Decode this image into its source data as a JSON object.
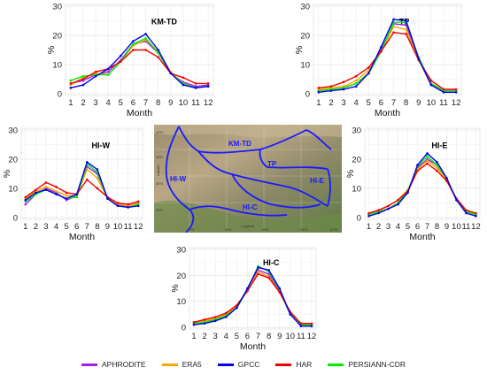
{
  "chart_data": [
    {
      "type": "line",
      "region": "KM-TD",
      "title": "KM-TD",
      "xlabel": "Month",
      "ylabel": "%",
      "ylim": [
        0,
        30
      ],
      "yticks": [
        0,
        10,
        20,
        30
      ],
      "categories": [
        "1",
        "2",
        "3",
        "4",
        "5",
        "6",
        "7",
        "8",
        "9",
        "10",
        "11",
        "12"
      ],
      "series": [
        {
          "name": "APHRODITE",
          "values": [
            3.5,
            4.5,
            6.5,
            7.5,
            11.5,
            17,
            18,
            14,
            7,
            4,
            2.5,
            3
          ]
        },
        {
          "name": "ERA5",
          "values": [
            3,
            5.5,
            7,
            6.5,
            11,
            16.5,
            18.5,
            14.5,
            7.5,
            3.5,
            2,
            2.5
          ]
        },
        {
          "name": "GPCC",
          "values": [
            2,
            3,
            6,
            8.5,
            13,
            18,
            20.5,
            15,
            7,
            3,
            2,
            2.5
          ]
        },
        {
          "name": "HAR",
          "values": [
            3.5,
            5,
            7.5,
            8.5,
            11,
            15,
            15,
            12.5,
            7,
            5.5,
            3.5,
            3.5
          ]
        },
        {
          "name": "PERSIANN-CDR",
          "values": [
            4.5,
            6,
            6.5,
            6.5,
            11,
            17,
            19,
            14,
            7,
            3.5,
            2,
            2.5
          ]
        }
      ]
    },
    {
      "type": "line",
      "region": "TP",
      "title": "TP",
      "xlabel": "Month",
      "ylabel": "%",
      "ylim": [
        0,
        30
      ],
      "yticks": [
        0,
        10,
        20,
        30
      ],
      "categories": [
        "1",
        "2",
        "3",
        "4",
        "5",
        "6",
        "7",
        "8",
        "9",
        "10",
        "11",
        "12"
      ],
      "series": [
        {
          "name": "APHRODITE",
          "values": [
            1,
            1.5,
            2,
            3.5,
            7,
            15,
            24,
            23.5,
            12,
            3,
            1,
            1
          ]
        },
        {
          "name": "ERA5",
          "values": [
            1.5,
            2,
            2.5,
            4.5,
            8,
            14.5,
            23,
            22,
            11.5,
            3.5,
            1,
            1
          ]
        },
        {
          "name": "GPCC",
          "values": [
            0.5,
            1,
            1.5,
            2.5,
            7,
            16,
            25.5,
            25,
            12,
            3,
            0.5,
            0.5
          ]
        },
        {
          "name": "HAR",
          "values": [
            2,
            2.5,
            4,
            6,
            9,
            14.5,
            21,
            20.5,
            11.5,
            4.5,
            1.5,
            1.5
          ]
        },
        {
          "name": "PERSIANN-CDR",
          "values": [
            1,
            1.5,
            2,
            3.5,
            7,
            14.5,
            24.5,
            24.5,
            12.5,
            3.5,
            1,
            1
          ]
        }
      ]
    },
    {
      "type": "line",
      "region": "HI-W",
      "title": "HI-W",
      "xlabel": "Month",
      "ylabel": "%",
      "ylim": [
        0,
        30
      ],
      "yticks": [
        0,
        10,
        20,
        30
      ],
      "categories": [
        "1",
        "2",
        "3",
        "4",
        "5",
        "6",
        "7",
        "8",
        "9",
        "10",
        "11",
        "12"
      ],
      "series": [
        {
          "name": "APHRODITE",
          "values": [
            4.5,
            8,
            10,
            8.5,
            6,
            7.5,
            17.5,
            15,
            6.5,
            4,
            4,
            5
          ]
        },
        {
          "name": "ERA5",
          "values": [
            6.5,
            9,
            10.5,
            9,
            7.5,
            7.5,
            16.5,
            13.5,
            6.5,
            4.5,
            4,
            5
          ]
        },
        {
          "name": "GPCC",
          "values": [
            6,
            8.5,
            9.5,
            8,
            6.5,
            8,
            19,
            16.5,
            6.5,
            4,
            3.5,
            4
          ]
        },
        {
          "name": "HAR",
          "values": [
            7,
            9.5,
            12,
            10.5,
            8.5,
            8,
            13,
            10,
            7,
            5,
            4.5,
            5.5
          ]
        },
        {
          "name": "PERSIANN-CDR",
          "values": [
            5.5,
            8,
            9.5,
            8,
            6.5,
            7,
            18.5,
            15.5,
            6.5,
            4,
            3.5,
            4.5
          ]
        }
      ]
    },
    {
      "type": "line",
      "region": "HI-E",
      "title": "HI-E",
      "xlabel": "Month",
      "ylabel": "%",
      "ylim": [
        0,
        30
      ],
      "yticks": [
        0,
        10,
        20,
        30
      ],
      "categories": [
        "1",
        "2",
        "3",
        "4",
        "5",
        "6",
        "7",
        "8",
        "9",
        "10",
        "11",
        "12"
      ],
      "series": [
        {
          "name": "APHRODITE",
          "values": [
            1,
            2,
            3,
            5,
            9,
            17,
            20,
            18,
            13,
            6,
            2,
            1
          ]
        },
        {
          "name": "ERA5",
          "values": [
            1.5,
            2.5,
            4,
            6,
            9.5,
            16.5,
            19.5,
            17,
            13,
            6.5,
            2,
            1
          ]
        },
        {
          "name": "GPCC",
          "values": [
            0.5,
            1.5,
            3,
            4.5,
            8.5,
            18,
            22,
            19,
            13.5,
            6,
            1.5,
            0.5
          ]
        },
        {
          "name": "HAR",
          "values": [
            1.5,
            2.5,
            4,
            6,
            9,
            16,
            18.5,
            16,
            12.5,
            6.5,
            2.5,
            1.5
          ]
        },
        {
          "name": "PERSIANN-CDR",
          "values": [
            1,
            2,
            3,
            5,
            9,
            17.5,
            21,
            18,
            13.5,
            6,
            2,
            1
          ]
        }
      ]
    },
    {
      "type": "line",
      "region": "HI-C",
      "title": "HI-C",
      "xlabel": "Month",
      "ylabel": "%",
      "ylim": [
        0,
        30
      ],
      "yticks": [
        0,
        10,
        20,
        30
      ],
      "categories": [
        "1",
        "2",
        "3",
        "4",
        "5",
        "6",
        "7",
        "8",
        "9",
        "10",
        "11",
        "12"
      ],
      "series": [
        {
          "name": "APHRODITE",
          "values": [
            1.5,
            2,
            3,
            4.5,
            8,
            14.5,
            22,
            20.5,
            14,
            5,
            1,
            1
          ]
        },
        {
          "name": "ERA5",
          "values": [
            2,
            2.5,
            3.5,
            5,
            8,
            14,
            21.5,
            19.5,
            13.5,
            5.5,
            1.5,
            1
          ]
        },
        {
          "name": "GPCC",
          "values": [
            1,
            1.5,
            2.5,
            4,
            7.5,
            15,
            23,
            22,
            15,
            5,
            0.5,
            0.5
          ]
        },
        {
          "name": "HAR",
          "values": [
            2,
            3,
            4,
            5.5,
            8.5,
            14,
            20.5,
            19,
            13.5,
            6,
            1.5,
            1.5
          ]
        },
        {
          "name": "PERSIANN-CDR",
          "values": [
            1.5,
            2,
            3,
            4.5,
            7.5,
            14.5,
            23.5,
            21.5,
            14.5,
            5,
            1,
            1
          ]
        }
      ]
    }
  ],
  "series_colors": {
    "APHRODITE": "#a020f0",
    "ERA5": "#ffa500",
    "GPCC": "#0000ee",
    "HAR": "#ee0000",
    "PERSIANN-CDR": "#00ee00"
  },
  "legend": [
    {
      "label": "APHRODITE",
      "color": "#a020f0"
    },
    {
      "label": "ERA5",
      "color": "#ffa500"
    },
    {
      "label": "GPCC",
      "color": "#0000ee"
    },
    {
      "label": "HAR",
      "color": "#ee0000"
    },
    {
      "label": "PERSIANN-CDR",
      "color": "#00ee00"
    }
  ],
  "map": {
    "region_labels": [
      "KM-TD",
      "TP",
      "HI-W",
      "HI-E",
      "HI-C"
    ],
    "lon_ticks": [
      "70°E",
      "80°E",
      "90°E",
      "100°E",
      "110°E"
    ],
    "lat_ticks": [
      "40°N",
      "35°N",
      "30°N",
      "25°N"
    ],
    "xlabel": "Longitude",
    "ylabel": "Latitude"
  }
}
